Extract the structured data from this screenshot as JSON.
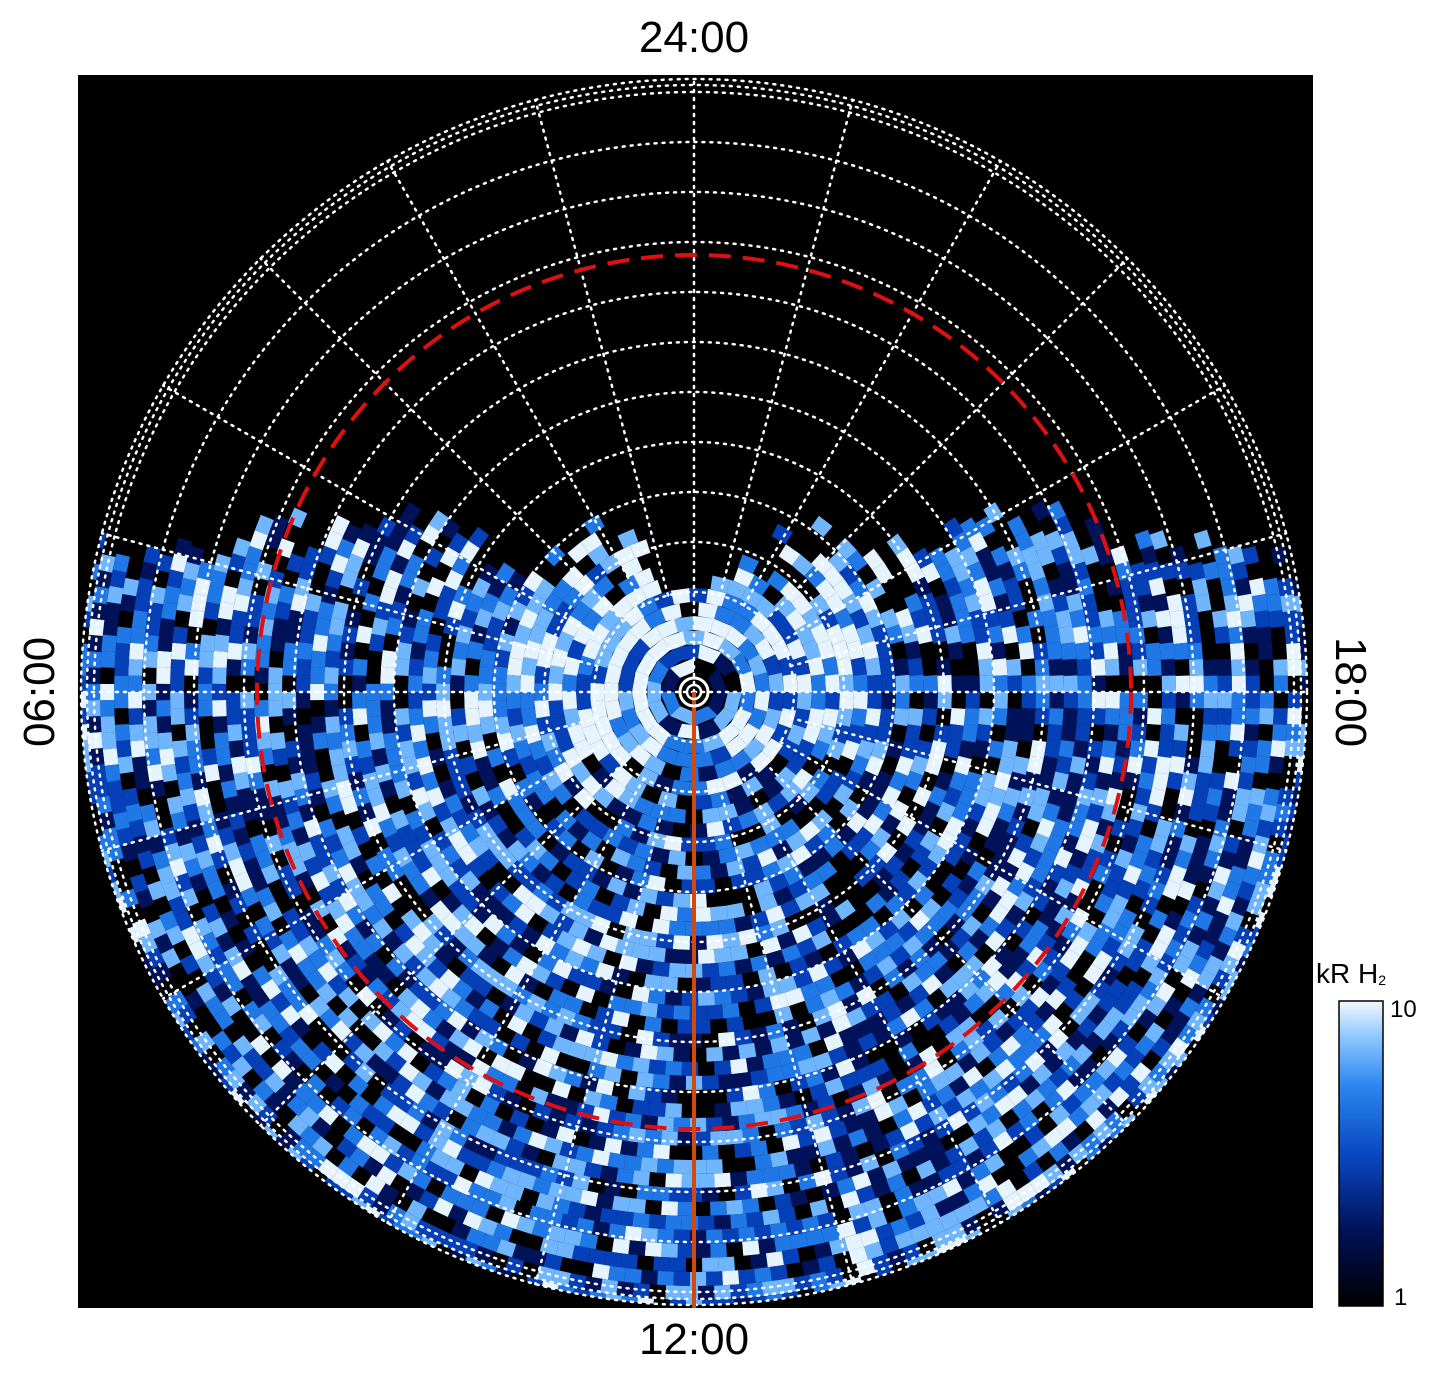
{
  "image": {
    "description_role": "polar projection of H2 auroral emission brightness",
    "colors": {
      "background": "#000000",
      "grid": "#ffffff",
      "reference_circle": "#e01010",
      "meridian": "#d04a10",
      "colormap": [
        "#000000",
        "#00125a",
        "#0640b8",
        "#1f78e6",
        "#70b6ff",
        "#e6f4ff"
      ]
    }
  },
  "labels": {
    "top": "24:00",
    "bottom": "12:00",
    "left": "06:00",
    "right": "18:00"
  },
  "colorbar": {
    "unit_main": "kR H",
    "unit_sub": "2",
    "max_label": "10",
    "min_label": "1",
    "scale": "log"
  },
  "icons": {
    "pole_marker": "target-circle-icon"
  }
}
